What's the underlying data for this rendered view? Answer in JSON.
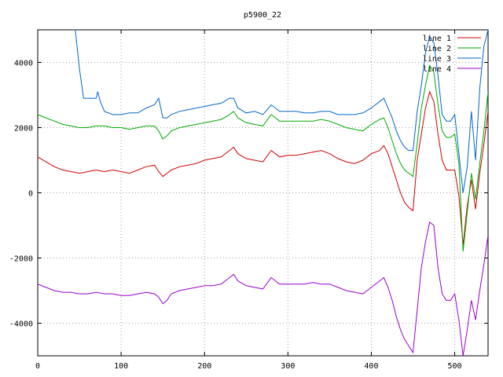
{
  "chart_data": {
    "type": "line",
    "title": "p5900_22",
    "xlabel": "",
    "ylabel": "",
    "xlim": [
      0,
      540
    ],
    "ylim": [
      -5000,
      5000
    ],
    "xticks": [
      0,
      100,
      200,
      300,
      400,
      500
    ],
    "yticks": [
      -4000,
      -2000,
      0,
      2000,
      4000
    ],
    "grid": true,
    "legend_position": "top-right",
    "series": [
      {
        "name": "line 1",
        "color": "#cc0000",
        "x": [
          0,
          10,
          20,
          30,
          40,
          50,
          60,
          70,
          80,
          90,
          100,
          110,
          120,
          130,
          140,
          145,
          150,
          155,
          160,
          170,
          180,
          190,
          200,
          210,
          220,
          230,
          235,
          240,
          250,
          260,
          270,
          280,
          290,
          300,
          310,
          320,
          330,
          340,
          350,
          360,
          370,
          380,
          390,
          400,
          410,
          415,
          420,
          425,
          430,
          435,
          440,
          445,
          450,
          455,
          460,
          465,
          470,
          475,
          480,
          485,
          490,
          495,
          500,
          505,
          510,
          515,
          520,
          525,
          530,
          535,
          540
        ],
        "y": [
          1100,
          950,
          800,
          700,
          650,
          600,
          650,
          700,
          650,
          700,
          650,
          600,
          700,
          800,
          850,
          650,
          500,
          600,
          700,
          800,
          850,
          900,
          1000,
          1050,
          1100,
          1300,
          1400,
          1200,
          1050,
          1000,
          950,
          1300,
          1100,
          1150,
          1150,
          1200,
          1250,
          1300,
          1200,
          1050,
          950,
          900,
          1000,
          1200,
          1300,
          1450,
          1200,
          800,
          400,
          0,
          -300,
          -450,
          -550,
          1000,
          1800,
          2600,
          3100,
          2800,
          1800,
          1000,
          700,
          700,
          700,
          -100,
          -1600,
          -400,
          400,
          -500,
          600,
          1500,
          2500
        ]
      },
      {
        "name": "line 2",
        "color": "#00aa00",
        "x": [
          0,
          10,
          20,
          30,
          40,
          50,
          60,
          70,
          80,
          90,
          100,
          110,
          120,
          130,
          140,
          145,
          150,
          155,
          160,
          170,
          180,
          190,
          200,
          210,
          220,
          230,
          235,
          240,
          250,
          260,
          270,
          280,
          290,
          300,
          310,
          320,
          330,
          340,
          350,
          360,
          370,
          380,
          390,
          400,
          410,
          415,
          420,
          425,
          430,
          435,
          440,
          445,
          450,
          455,
          460,
          465,
          470,
          475,
          480,
          485,
          490,
          495,
          500,
          505,
          510,
          515,
          520,
          525,
          530,
          535,
          540
        ],
        "y": [
          2400,
          2300,
          2200,
          2100,
          2050,
          2000,
          2000,
          2050,
          2050,
          2000,
          2000,
          1950,
          2000,
          2050,
          2050,
          1900,
          1650,
          1750,
          1900,
          2000,
          2050,
          2100,
          2150,
          2200,
          2250,
          2400,
          2500,
          2300,
          2150,
          2100,
          2050,
          2400,
          2200,
          2200,
          2200,
          2200,
          2200,
          2250,
          2200,
          2100,
          2000,
          1950,
          1900,
          2100,
          2250,
          2300,
          2000,
          1600,
          1200,
          900,
          700,
          600,
          500,
          1500,
          2600,
          3300,
          3900,
          3700,
          2700,
          1900,
          1700,
          1700,
          1800,
          900,
          -1800,
          -600,
          600,
          -200,
          900,
          1900,
          3100
        ]
      },
      {
        "name": "line 3",
        "color": "#0066cc",
        "x": [
          0,
          45,
          50,
          55,
          60,
          70,
          72,
          75,
          80,
          90,
          100,
          110,
          120,
          130,
          140,
          145,
          150,
          155,
          160,
          170,
          180,
          190,
          200,
          210,
          220,
          230,
          235,
          240,
          250,
          260,
          270,
          280,
          290,
          300,
          310,
          320,
          330,
          340,
          350,
          360,
          370,
          380,
          390,
          400,
          410,
          415,
          420,
          425,
          430,
          435,
          440,
          445,
          450,
          455,
          460,
          465,
          470,
          475,
          480,
          485,
          490,
          495,
          500,
          505,
          510,
          515,
          520,
          525,
          530,
          535,
          540
        ],
        "y": [
          5200,
          5000,
          3800,
          2900,
          2900,
          2900,
          3100,
          2800,
          2500,
          2400,
          2400,
          2450,
          2450,
          2600,
          2700,
          2900,
          2300,
          2300,
          2400,
          2500,
          2550,
          2600,
          2650,
          2700,
          2750,
          2900,
          2900,
          2600,
          2450,
          2500,
          2400,
          2700,
          2500,
          2500,
          2500,
          2450,
          2450,
          2500,
          2500,
          2400,
          2400,
          2400,
          2450,
          2600,
          2800,
          2900,
          2600,
          2300,
          1900,
          1600,
          1400,
          1300,
          1300,
          2500,
          3300,
          4300,
          4800,
          4600,
          3600,
          2400,
          2200,
          2200,
          2400,
          1200,
          0,
          800,
          2500,
          1000,
          3200,
          4500,
          5000
        ]
      },
      {
        "name": "line 4",
        "color": "#9900cc",
        "x": [
          0,
          10,
          20,
          30,
          40,
          50,
          60,
          70,
          80,
          90,
          100,
          110,
          120,
          130,
          140,
          145,
          150,
          155,
          160,
          170,
          180,
          190,
          200,
          210,
          220,
          230,
          235,
          240,
          250,
          260,
          270,
          280,
          290,
          300,
          310,
          320,
          330,
          340,
          350,
          360,
          370,
          380,
          390,
          400,
          410,
          415,
          420,
          425,
          430,
          435,
          440,
          445,
          450,
          455,
          460,
          465,
          470,
          475,
          480,
          485,
          490,
          495,
          500,
          505,
          510,
          515,
          520,
          525,
          530,
          535,
          540
        ],
        "y": [
          -2800,
          -2900,
          -3000,
          -3050,
          -3050,
          -3100,
          -3100,
          -3050,
          -3100,
          -3100,
          -3150,
          -3150,
          -3100,
          -3050,
          -3100,
          -3200,
          -3400,
          -3300,
          -3100,
          -3000,
          -2950,
          -2900,
          -2850,
          -2850,
          -2800,
          -2600,
          -2500,
          -2700,
          -2850,
          -2900,
          -2950,
          -2600,
          -2800,
          -2800,
          -2800,
          -2800,
          -2750,
          -2800,
          -2800,
          -2900,
          -3000,
          -3050,
          -3100,
          -2900,
          -2700,
          -2600,
          -2900,
          -3300,
          -3800,
          -4200,
          -4500,
          -4700,
          -4900,
          -3600,
          -2300,
          -1500,
          -900,
          -1000,
          -2300,
          -3100,
          -3300,
          -3300,
          -3100,
          -3900,
          -5000,
          -4200,
          -3300,
          -3900,
          -3000,
          -2200,
          -1300
        ]
      }
    ]
  }
}
